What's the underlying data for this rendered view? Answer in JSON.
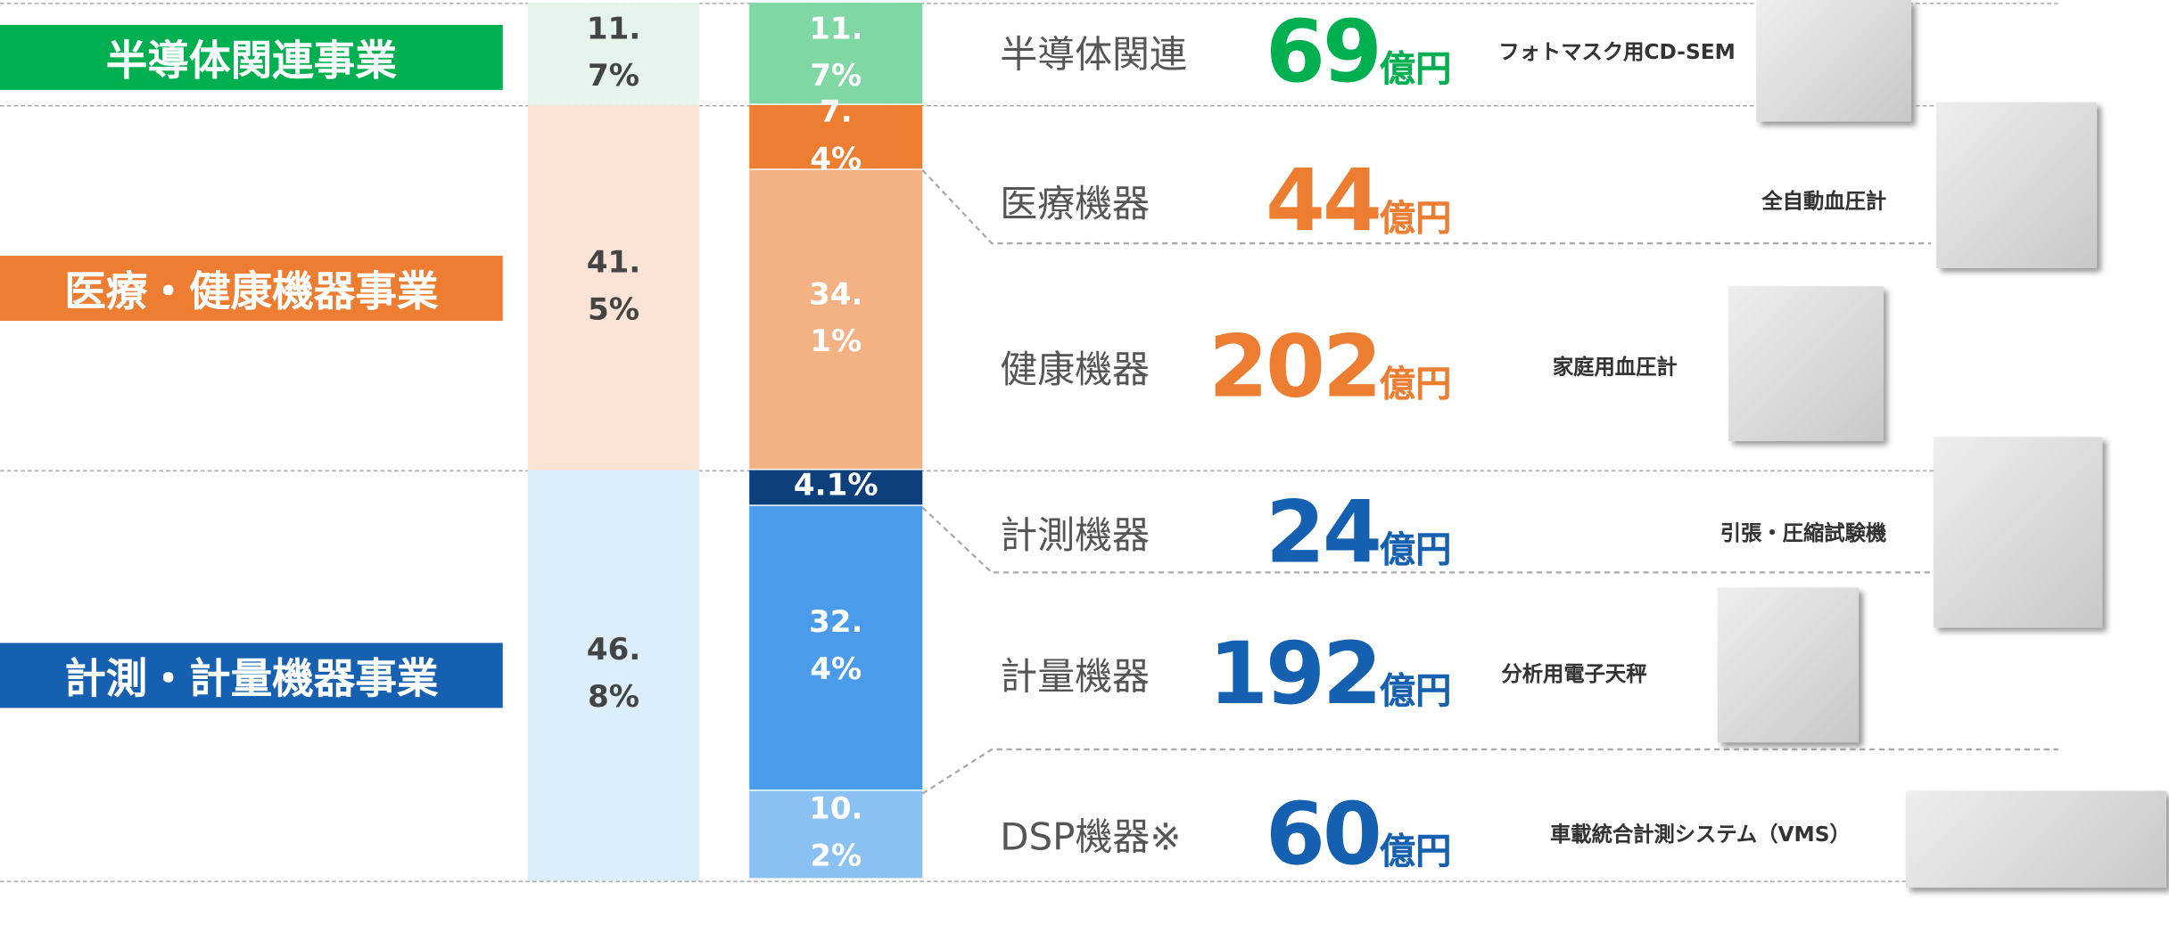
{
  "chart_data": {
    "type": "stacked-bar",
    "unit": "億円",
    "segments": [
      {
        "name": "半導体関連事業",
        "color": "#00b050",
        "pale": "#e6f5ec",
        "value": 11.7,
        "value_label": "11.7%"
      },
      {
        "name": "医療・健康機器事業",
        "color": "#ed7d31",
        "pale": "#fbe3d6",
        "value": 41.5,
        "value_label": "41.5%"
      },
      {
        "name": "計測・計量機器事業",
        "color": "#1560b0",
        "pale": "#ddeefb",
        "value": 46.8,
        "value_label": "46.8%"
      }
    ],
    "products": [
      {
        "name": "半導体関連",
        "segment": 0,
        "color": "#7fd8a4",
        "value": 11.7,
        "value_label": "11.7%",
        "sales": 69,
        "caption": "フォトマスク用CD-SEM"
      },
      {
        "name": "医療機器",
        "segment": 1,
        "color": "#ed7d31",
        "value": 7.4,
        "value_label": "7.4%",
        "sales": 44,
        "caption": "全自動血圧計"
      },
      {
        "name": "健康機器",
        "segment": 1,
        "color": "#f4b183",
        "value": 34.1,
        "value_label": "34.1%",
        "sales": 202,
        "caption": "家庭用血圧計"
      },
      {
        "name": "計測機器",
        "segment": 2,
        "color": "#0d3f7a",
        "value": 4.1,
        "value_label": "4.1%",
        "sales": 24,
        "caption": "引張・圧縮試験機"
      },
      {
        "name": "計量機器",
        "segment": 2,
        "color": "#4a9ceb",
        "value": 32.4,
        "value_label": "32.4%",
        "sales": 192,
        "caption": "分析用電子天秤"
      },
      {
        "name": "DSP機器※",
        "segment": 2,
        "color": "#8bc0f3",
        "value": 10.2,
        "value_label": "10.2%",
        "sales": 60,
        "caption": "車載統合計測システム（VMS）"
      }
    ]
  }
}
